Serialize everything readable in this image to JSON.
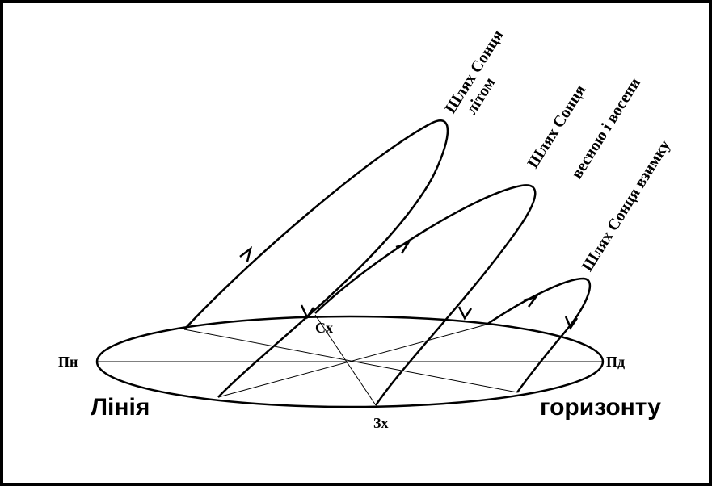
{
  "paths": {
    "summer": [
      "Шлях Сонця",
      "літом"
    ],
    "equinox": [
      "Шлях Сонця",
      "весною і восени"
    ],
    "winter": [
      "Шлях Сонця взимку"
    ]
  },
  "directions": {
    "north": "Пн",
    "south": "Пд",
    "east": "Сх",
    "west": "Зх"
  },
  "horizon": [
    "Лінія",
    "горизонту"
  ]
}
